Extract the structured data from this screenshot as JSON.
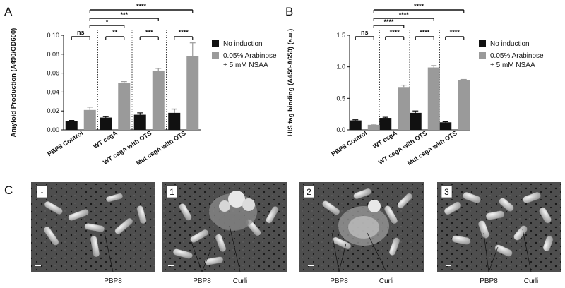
{
  "figure": {
    "panel_letters": [
      "A",
      "B",
      "C"
    ]
  },
  "colors": {
    "no_induction": "#111111",
    "induced": "#9a9a9a",
    "axis": "#111111"
  },
  "chart_data": [
    {
      "type": "bar",
      "panel": "A",
      "ylabel": "Amyloid Production (A490/OD600)",
      "ylim": [
        0,
        0.1
      ],
      "yticks": [
        "0.00",
        "0.02",
        "0.04",
        "0.06",
        "0.08",
        "0.10"
      ],
      "categories": [
        "PBP8 Control",
        "WT csgA",
        "WT csgA with OTS",
        "Mut csgA with OTS"
      ],
      "series": [
        {
          "name": "No induction",
          "values": [
            0.009,
            0.013,
            0.016,
            0.018
          ],
          "errors": [
            0.001,
            0.001,
            0.002,
            0.004
          ]
        },
        {
          "name": "0.05% Arabinose + 5 mM NSAA",
          "values": [
            0.021,
            0.05,
            0.062,
            0.078
          ],
          "errors": [
            0.003,
            0.001,
            0.003,
            0.014
          ]
        }
      ],
      "legend_position": "right",
      "within_group_significance": [
        "ns",
        "**",
        "***",
        "****"
      ],
      "comparison_significance": [
        "*",
        "***",
        "****"
      ]
    },
    {
      "type": "bar",
      "panel": "B",
      "ylabel": "HIS tag binding (A450-A650) (a.u.)",
      "ylim": [
        0,
        1.5
      ],
      "yticks": [
        "0.0",
        "0.5",
        "1.0",
        "1.5"
      ],
      "categories": [
        "PBP8 Control",
        "WT csgA",
        "WT csgA with OTS",
        "Mut csgA with OTS"
      ],
      "series": [
        {
          "name": "No induction",
          "values": [
            0.15,
            0.19,
            0.27,
            0.12
          ],
          "errors": [
            0.01,
            0.01,
            0.03,
            0.01
          ]
        },
        {
          "name": "0.05% Arabinose + 5 mM NSAA",
          "values": [
            0.08,
            0.68,
            0.99,
            0.79
          ],
          "errors": [
            0.01,
            0.03,
            0.03,
            0.01
          ]
        }
      ],
      "legend_position": "right",
      "within_group_significance": [
        "ns",
        "****",
        "****",
        "****"
      ],
      "comparison_significance": [
        "****",
        "****",
        "****"
      ]
    }
  ],
  "panel_c": [
    {
      "label": "-",
      "annotations": [
        "PBP8"
      ]
    },
    {
      "label": "1",
      "annotations": [
        "PBP8",
        "Curli"
      ]
    },
    {
      "label": "2",
      "annotations": [
        "PBP8",
        "Curli"
      ]
    },
    {
      "label": "3",
      "annotations": [
        "PBP8",
        "Curli"
      ]
    }
  ]
}
